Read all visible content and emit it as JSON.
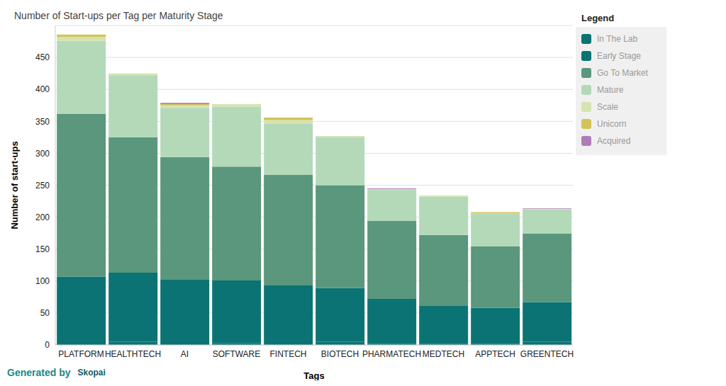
{
  "chart_data": {
    "type": "bar",
    "title": "Number of Start-ups per Tag per Maturity Stage",
    "x_label": "Tags",
    "y_label": "Number of start-ups",
    "legend_title": "Legend",
    "footer": "Generated by",
    "logo": "Skopai",
    "categories": [
      "PLATFORM",
      "HEALTHTECH",
      "AI",
      "SOFTWARE",
      "FINTECH",
      "BIOTECH",
      "PHARMATECH",
      "MEDTECH",
      "APPTECH",
      "GREENTECH"
    ],
    "series": [
      {
        "name": "In The Lab",
        "color": "#0b7373",
        "values": [
          1,
          5,
          0,
          3,
          0,
          5,
          2,
          2,
          2,
          5
        ]
      },
      {
        "name": "Early Stage",
        "color": "#0b7373",
        "values": [
          106,
          108,
          102,
          98,
          93,
          84,
          70,
          59,
          56,
          62
        ]
      },
      {
        "name": "Go To Market",
        "color": "#5a977c",
        "values": [
          255,
          212,
          192,
          178,
          173,
          161,
          122,
          111,
          96,
          107
        ]
      },
      {
        "name": "Mature",
        "color": "#b3d9b9",
        "values": [
          114,
          97,
          77,
          94,
          80,
          75,
          49,
          60,
          51,
          38
        ]
      },
      {
        "name": "Scale",
        "color": "#d4e4b0",
        "values": [
          6,
          3,
          4,
          4,
          6,
          2,
          1,
          2,
          1,
          1
        ]
      },
      {
        "name": "Unicorn",
        "color": "#d4c35a",
        "values": [
          4,
          0,
          2,
          0,
          4,
          0,
          0,
          0,
          2,
          0
        ]
      },
      {
        "name": "Acquired",
        "color": "#b07cb8",
        "values": [
          0,
          0,
          2,
          0,
          0,
          0,
          1,
          0,
          0,
          1
        ]
      }
    ],
    "stacked": true,
    "ylim": [
      0,
      500
    ],
    "yticks": [
      0,
      50,
      100,
      150,
      200,
      250,
      300,
      350,
      400,
      450
    ],
    "grid": true,
    "legend": "right"
  }
}
